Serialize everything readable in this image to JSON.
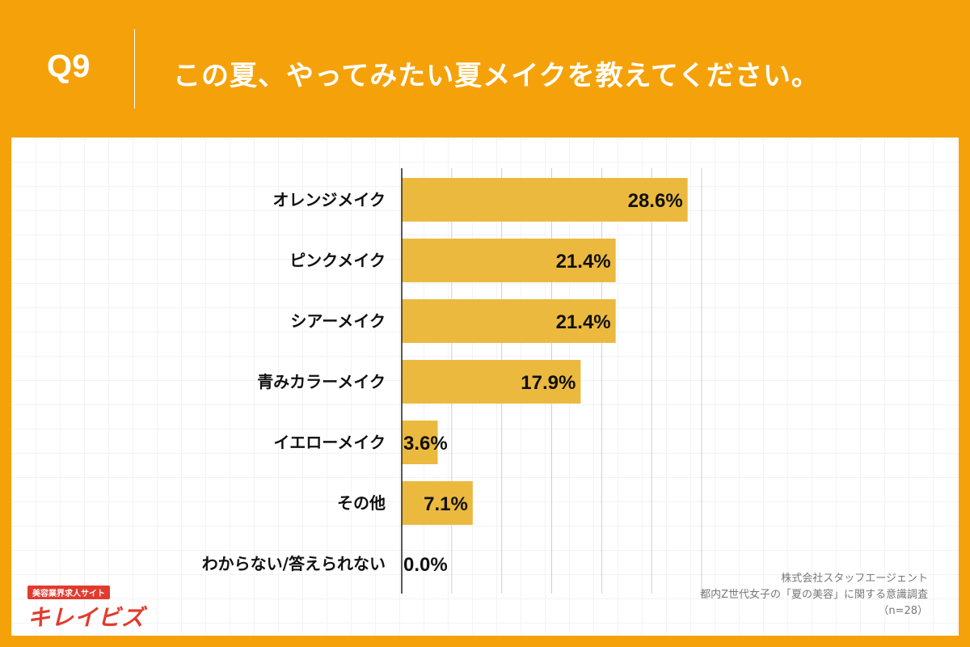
{
  "header": {
    "question_number": "Q9",
    "question_text": "この夏、やってみたい夏メイクを教えてください。"
  },
  "colors": {
    "background": "#F5A20A",
    "bar": "#ECB93F",
    "text": "#111111"
  },
  "footer": {
    "company": "株式会社スタッフエージェント",
    "survey": "都内Z世代女子の「夏の美容」に関する意識調査",
    "sample": "（n=28）"
  },
  "logo": {
    "tagline": "美容業界求人サイト",
    "name": "キレイビズ"
  },
  "chart_data": {
    "type": "bar",
    "orientation": "horizontal",
    "categories": [
      "オレンジメイク",
      "ピンクメイク",
      "シアーメイク",
      "青みカラーメイク",
      "イエローメイク",
      "その他",
      "わからない/答えられない"
    ],
    "values": [
      28.6,
      21.4,
      21.4,
      17.9,
      3.6,
      7.1,
      0.0
    ],
    "value_labels": [
      "28.6%",
      "21.4%",
      "21.4%",
      "17.9%",
      "3.6%",
      "7.1%",
      "0.0%"
    ],
    "xlim": [
      0,
      30
    ],
    "grid": true
  }
}
